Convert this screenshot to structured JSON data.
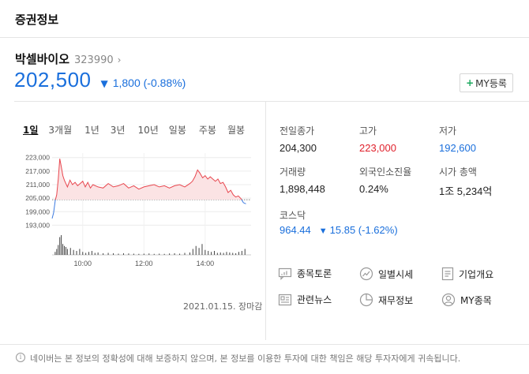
{
  "header": {
    "title": "증권정보"
  },
  "stock": {
    "name": "박셀바이오",
    "code": "323990",
    "chevron": "›",
    "price": "202,500",
    "direction": "▼",
    "change": "1,800 (-0.88%)",
    "my_button": "MY등록",
    "my_plus": "+"
  },
  "period_tabs": [
    "1일",
    "3개월",
    "1년",
    "3년",
    "10년",
    "일봉",
    "주봉",
    "월봉"
  ],
  "chart_data": {
    "type": "line",
    "title": "",
    "y_ticks": [
      "223,000",
      "217,000",
      "211,000",
      "205,000",
      "199,000",
      "193,000"
    ],
    "y_tick_values": [
      223000,
      217000,
      211000,
      205000,
      199000,
      193000
    ],
    "ylim": [
      190000,
      225000
    ],
    "x_ticks": [
      "10:00",
      "12:00",
      "14:00"
    ],
    "x_tick_minutes": [
      600,
      720,
      840
    ],
    "xlim": [
      540,
      930
    ],
    "previous_close": 204300,
    "price_series": {
      "x": [
        540,
        543,
        546,
        549,
        552,
        555,
        558,
        561,
        564,
        567,
        570,
        575,
        580,
        585,
        590,
        595,
        600,
        605,
        610,
        615,
        620,
        630,
        640,
        650,
        660,
        670,
        680,
        690,
        700,
        710,
        720,
        730,
        740,
        750,
        760,
        770,
        780,
        790,
        800,
        810,
        815,
        820,
        825,
        830,
        835,
        840,
        845,
        850,
        855,
        860,
        865,
        870,
        875,
        880,
        885,
        890,
        895,
        900,
        905,
        910,
        915,
        920
      ],
      "y": [
        196000,
        198500,
        203800,
        206500,
        213500,
        222500,
        219000,
        215000,
        213000,
        211500,
        210000,
        213000,
        211000,
        212000,
        210500,
        211500,
        212500,
        210000,
        212000,
        209500,
        211000,
        210000,
        209500,
        211500,
        210000,
        210500,
        211500,
        209500,
        210500,
        209000,
        210000,
        210500,
        211000,
        210000,
        210500,
        209500,
        210500,
        211000,
        210000,
        211500,
        212500,
        214500,
        217500,
        216000,
        214000,
        215000,
        213500,
        214500,
        213500,
        212500,
        213500,
        211500,
        212000,
        210000,
        207500,
        208500,
        206500,
        205500,
        206000,
        204800,
        203000,
        202500
      ]
    },
    "volume_series": {
      "x": [
        546,
        549,
        552,
        555,
        558,
        561,
        564,
        567,
        570,
        576,
        582,
        588,
        594,
        600,
        606,
        612,
        618,
        624,
        630,
        640,
        650,
        660,
        670,
        680,
        690,
        700,
        710,
        720,
        730,
        740,
        750,
        760,
        770,
        780,
        790,
        800,
        810,
        816,
        822,
        828,
        834,
        840,
        846,
        852,
        858,
        864,
        870,
        876,
        882,
        888,
        894,
        900,
        906,
        912,
        918
      ],
      "y": [
        0.15,
        0.3,
        0.5,
        0.9,
        1.0,
        0.55,
        0.45,
        0.4,
        0.3,
        0.35,
        0.25,
        0.2,
        0.3,
        0.15,
        0.1,
        0.15,
        0.2,
        0.1,
        0.12,
        0.08,
        0.1,
        0.08,
        0.06,
        0.08,
        0.07,
        0.06,
        0.05,
        0.06,
        0.07,
        0.05,
        0.06,
        0.05,
        0.07,
        0.08,
        0.06,
        0.1,
        0.12,
        0.3,
        0.45,
        0.35,
        0.55,
        0.25,
        0.2,
        0.15,
        0.2,
        0.1,
        0.12,
        0.1,
        0.15,
        0.12,
        0.1,
        0.08,
        0.15,
        0.2,
        0.3
      ]
    }
  },
  "date_label": "2021.01.15. 장마감",
  "stats": [
    {
      "label": "전일종가",
      "value": "204,300",
      "color": "default"
    },
    {
      "label": "고가",
      "value": "223,000",
      "color": "red"
    },
    {
      "label": "저가",
      "value": "192,600",
      "color": "blue"
    },
    {
      "label": "거래량",
      "value": "1,898,448",
      "color": "default"
    },
    {
      "label": "외국인소진율",
      "value": "0.24%",
      "color": "default"
    },
    {
      "label": "시가 총액",
      "value": "1조 5,234억",
      "color": "default"
    }
  ],
  "kosdaq": {
    "label": "코스닥",
    "value": "964.44",
    "arrow": "▼",
    "change": "15.85 (-1.62%)"
  },
  "links": [
    {
      "label": "종목토론",
      "icon": "chat-icon"
    },
    {
      "label": "일별시세",
      "icon": "trend-icon"
    },
    {
      "label": "기업개요",
      "icon": "document-icon"
    },
    {
      "label": "관련뉴스",
      "icon": "news-icon"
    },
    {
      "label": "재무정보",
      "icon": "pie-chart-icon"
    },
    {
      "label": "MY종목",
      "icon": "user-icon"
    }
  ],
  "footer": {
    "icon": "i",
    "text": "네이버는 본 정보의 정확성에 대해 보증하지 않으며, 본 정보를 이용한 투자에 대한 책임은 해당 투자자에게 귀속됩니다."
  },
  "colors": {
    "accent_blue": "#1a6fdc",
    "accent_red": "#e0212c",
    "chart_line_up": "#e8474f",
    "chart_fill_up": "#fbe3e4",
    "chart_line_down": "#3a79e0",
    "my_plus_green": "#1ba85e"
  }
}
